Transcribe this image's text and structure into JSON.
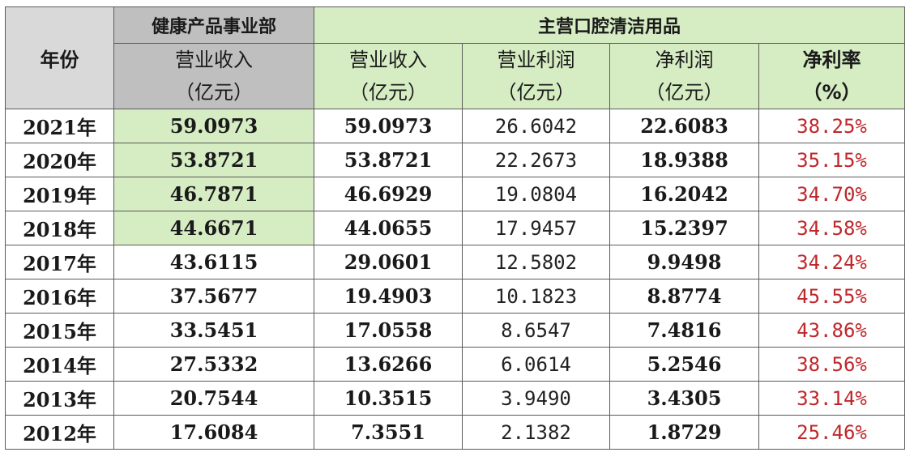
{
  "header": {
    "year_label": "年份",
    "health_dept": "健康产品事业部",
    "oral_care": "主营口腔清洁用品",
    "health_revenue": [
      "营业收入",
      "（亿元）"
    ],
    "oral_revenue": [
      "营业收入",
      "（亿元）"
    ],
    "oral_op_profit": [
      "营业利润",
      "（亿元）"
    ],
    "oral_net_profit": [
      "净利润",
      "（亿元）"
    ],
    "oral_net_margin": [
      "净利率",
      "（%）"
    ]
  },
  "colors": {
    "gray_header": "#bfbfbf",
    "green_header": "#d6ecc3",
    "highlight_green": "#d6ecc3",
    "rate_red": "#c0262a",
    "border": "#5b5b5b"
  },
  "rows": [
    {
      "year": "2021年",
      "health_revenue": "59.0973",
      "highlight": true,
      "revenue": "59.0973",
      "op_profit": "26.6042",
      "net_profit": "22.6083",
      "net_margin": "38.25%"
    },
    {
      "year": "2020年",
      "health_revenue": "53.8721",
      "highlight": true,
      "revenue": "53.8721",
      "op_profit": "22.2673",
      "net_profit": "18.9388",
      "net_margin": "35.15%"
    },
    {
      "year": "2019年",
      "health_revenue": "46.7871",
      "highlight": true,
      "revenue": "46.6929",
      "op_profit": "19.0804",
      "net_profit": "16.2042",
      "net_margin": "34.70%"
    },
    {
      "year": "2018年",
      "health_revenue": "44.6671",
      "highlight": true,
      "revenue": "44.0655",
      "op_profit": "17.9457",
      "net_profit": "15.2397",
      "net_margin": "34.58%"
    },
    {
      "year": "2017年",
      "health_revenue": "43.6115",
      "highlight": false,
      "revenue": "29.0601",
      "op_profit": "12.5802",
      "net_profit": "9.9498",
      "net_margin": "34.24%"
    },
    {
      "year": "2016年",
      "health_revenue": "37.5677",
      "highlight": false,
      "revenue": "19.4903",
      "op_profit": "10.1823",
      "net_profit": "8.8774",
      "net_margin": "45.55%"
    },
    {
      "year": "2015年",
      "health_revenue": "33.5451",
      "highlight": false,
      "revenue": "17.0558",
      "op_profit": "8.6547",
      "net_profit": "7.4816",
      "net_margin": "43.86%"
    },
    {
      "year": "2014年",
      "health_revenue": "27.5332",
      "highlight": false,
      "revenue": "13.6266",
      "op_profit": "6.0614",
      "net_profit": "5.2546",
      "net_margin": "38.56%"
    },
    {
      "year": "2013年",
      "health_revenue": "20.7544",
      "highlight": false,
      "revenue": "10.3515",
      "op_profit": "3.9490",
      "net_profit": "3.4305",
      "net_margin": "33.14%"
    },
    {
      "year": "2012年",
      "health_revenue": "17.6084",
      "highlight": false,
      "revenue": "7.3551",
      "op_profit": "2.1382",
      "net_profit": "1.8729",
      "net_margin": "25.46%"
    }
  ]
}
